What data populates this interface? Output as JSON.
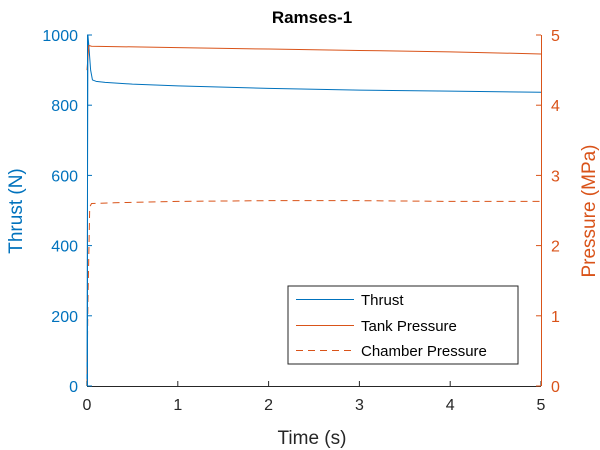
{
  "chart_data": {
    "type": "line",
    "title": "Ramses-1",
    "xlabel": "Time (s)",
    "ylabel_left": "Thrust (N)",
    "ylabel_right": "Pressure (MPa)",
    "xlim": [
      0,
      5
    ],
    "ylim_left": [
      0,
      1000
    ],
    "ylim_right": [
      0,
      5
    ],
    "x_ticks": [
      "0",
      "1",
      "2",
      "3",
      "4",
      "5"
    ],
    "y_left_ticks": [
      "0",
      "200",
      "400",
      "600",
      "800",
      "1000"
    ],
    "y_right_ticks": [
      "0",
      "1",
      "2",
      "3",
      "4",
      "5"
    ],
    "grid": false,
    "legend_location": "bottom-right",
    "colors": {
      "left_axis": "#0072BD",
      "right_axis": "#D95319",
      "frame": "#262626"
    },
    "series": [
      {
        "name": "Thrust",
        "axis": "left",
        "style": "solid",
        "color": "#0072BD",
        "x": [
          0,
          0.005,
          0.01,
          0.02,
          0.04,
          0.06,
          0.1,
          0.2,
          0.5,
          1.0,
          2.0,
          3.0,
          4.0,
          5.0
        ],
        "y": [
          0,
          520,
          1000,
          970,
          900,
          872,
          868,
          865,
          860,
          855,
          848,
          843,
          840,
          837
        ]
      },
      {
        "name": "Tank Pressure",
        "axis": "right",
        "style": "solid",
        "color": "#D95319",
        "x": [
          0,
          0.02,
          0.05,
          1,
          2,
          3,
          4,
          5
        ],
        "y": [
          4.5,
          4.85,
          4.84,
          4.82,
          4.8,
          4.78,
          4.76,
          4.73
        ]
      },
      {
        "name": "Chamber Pressure",
        "axis": "right",
        "style": "dashed",
        "color": "#D95319",
        "x": [
          0,
          0.01,
          0.03,
          0.05,
          0.3,
          1,
          2,
          3,
          4,
          5
        ],
        "y": [
          0,
          1.2,
          2.55,
          2.6,
          2.61,
          2.63,
          2.64,
          2.64,
          2.63,
          2.63
        ]
      }
    ]
  }
}
